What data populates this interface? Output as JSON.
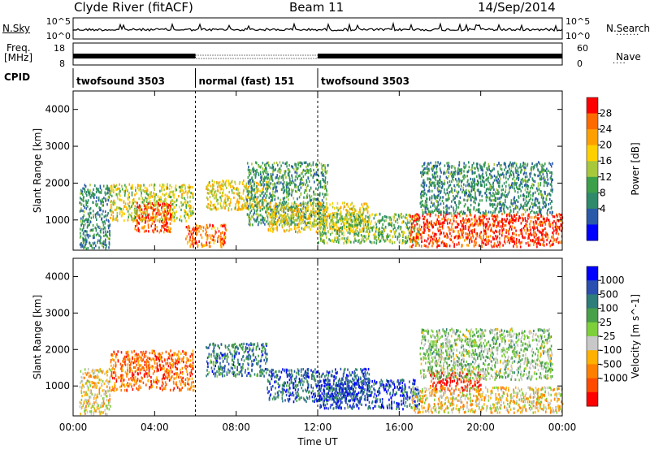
{
  "header": {
    "title": "Clyde River (fitACF)",
    "beam": "Beam 11",
    "date": "14/Sep/2014"
  },
  "noise_panel": {
    "left_label": "N.Sky",
    "right_label": "N.Search",
    "ticks_left": [
      "10^5",
      "10^0"
    ],
    "ticks_right": [
      "10^5",
      "10^0"
    ]
  },
  "freq_panel": {
    "left_label_line1": "Freq.",
    "left_label_line2": "[MHz]",
    "right_label": "Nave",
    "ticks_left": [
      "18",
      "8"
    ],
    "ticks_right": [
      "60",
      "0"
    ]
  },
  "cpid_panel": {
    "label": "CPID",
    "segments": [
      {
        "label": "twofsound 3503",
        "start_hour": 0,
        "end_hour": 6
      },
      {
        "label": "normal (fast) 151",
        "start_hour": 6,
        "end_hour": 12
      },
      {
        "label": "twofsound 3503",
        "start_hour": 12,
        "end_hour": 24
      }
    ]
  },
  "power_colorbar": {
    "label": "Power [dB]",
    "ticks": [
      "28",
      "24",
      "20",
      "16",
      "12",
      "8",
      "4"
    ],
    "colors": [
      "#ff0000",
      "#ff6a00",
      "#ffa000",
      "#ffd000",
      "#a8c83c",
      "#3ca04a",
      "#2e8a6a",
      "#2a5aa8",
      "#0000ff"
    ]
  },
  "velocity_colorbar": {
    "label": "Velocity [m s^-1]",
    "ticks": [
      "1000",
      "500",
      "100",
      "25",
      "-25",
      "-100",
      "-500",
      "-1000"
    ],
    "colors": [
      "#0000ff",
      "#2a4fb0",
      "#2d7d7a",
      "#48a048",
      "#7ed03a",
      "#c8c8c8",
      "#ffb000",
      "#ff8000",
      "#ff4a00",
      "#ff0000"
    ]
  },
  "chart_data": {
    "type": "heatmap",
    "title": "Clyde River (fitACF)",
    "xlabel": "Time UT",
    "ylabel": "Slant Range [km]",
    "x_ticks": [
      "00:00",
      "04:00",
      "08:00",
      "12:00",
      "16:00",
      "20:00",
      "00:00"
    ],
    "x_tick_hours": [
      0,
      4,
      8,
      12,
      16,
      20,
      24
    ],
    "y_ticks": [
      1000,
      2000,
      3000,
      4000
    ],
    "xlim_hours": [
      0,
      24
    ],
    "ylim_km": [
      180,
      4500
    ],
    "panels": [
      {
        "name": "power",
        "colorbar_label": "Power [dB]",
        "regions": [
          {
            "t0": 1.8,
            "t1": 5.9,
            "r0": 1000,
            "r1": 2000,
            "level": 0.55
          },
          {
            "t0": 3.0,
            "t1": 4.8,
            "r0": 700,
            "r1": 1500,
            "level": 0.85
          },
          {
            "t0": 5.5,
            "t1": 7.5,
            "r0": 300,
            "r1": 900,
            "level": 0.8
          },
          {
            "t0": 6.5,
            "t1": 9.5,
            "r0": 1300,
            "r1": 2100,
            "level": 0.6
          },
          {
            "t0": 8.5,
            "t1": 12.5,
            "r0": 900,
            "r1": 2600,
            "level": 0.35
          },
          {
            "t0": 9.5,
            "t1": 14.5,
            "r0": 700,
            "r1": 1500,
            "level": 0.6
          },
          {
            "t0": 12.0,
            "t1": 17.0,
            "r0": 400,
            "r1": 1200,
            "level": 0.45
          },
          {
            "t0": 16.5,
            "t1": 24.0,
            "r0": 300,
            "r1": 1200,
            "level": 0.9
          },
          {
            "t0": 17.0,
            "t1": 23.5,
            "r0": 1200,
            "r1": 2600,
            "level": 0.3
          },
          {
            "t0": 0.3,
            "t1": 1.8,
            "r0": 250,
            "r1": 2000,
            "level": 0.3
          }
        ]
      },
      {
        "name": "velocity",
        "colorbar_label": "Velocity [m s^-1]",
        "regions": [
          {
            "t0": 1.8,
            "t1": 5.9,
            "r0": 900,
            "r1": 2000,
            "level": 0.2
          },
          {
            "t0": 6.5,
            "t1": 9.5,
            "r0": 1300,
            "r1": 2200,
            "level": 0.75
          },
          {
            "t0": 9.5,
            "t1": 14.5,
            "r0": 600,
            "r1": 1500,
            "level": 0.8
          },
          {
            "t0": 12.0,
            "t1": 17.0,
            "r0": 400,
            "r1": 1200,
            "level": 0.85
          },
          {
            "t0": 17.5,
            "t1": 20.0,
            "r0": 900,
            "r1": 1400,
            "level": 0.05
          },
          {
            "t0": 16.5,
            "t1": 24.0,
            "r0": 300,
            "r1": 1000,
            "level": 0.4
          },
          {
            "t0": 17.0,
            "t1": 23.5,
            "r0": 1200,
            "r1": 2600,
            "level": 0.55
          },
          {
            "t0": 0.3,
            "t1": 1.8,
            "r0": 250,
            "r1": 1500,
            "level": 0.4
          }
        ]
      }
    ]
  }
}
